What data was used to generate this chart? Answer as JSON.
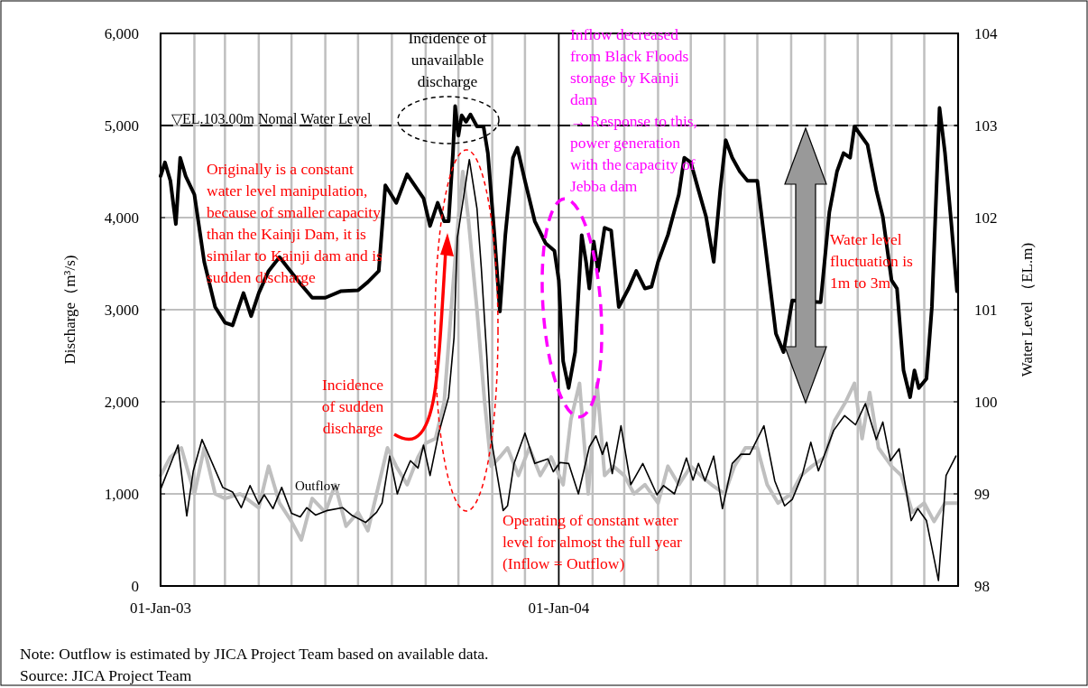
{
  "chart_data": {
    "type": "line",
    "xlabel": null,
    "ylabel": "Discharge（m³/s)",
    "y2label": "Water Level （EL.m)",
    "xlim": [
      "2003-01-01",
      "2005-01-01"
    ],
    "xticks": [
      {
        "value": "2003-01-01",
        "label": "01-Jan-03"
      },
      {
        "value": "2003-02-01",
        "label": null
      },
      {
        "value": "2003-03-01",
        "label": null
      },
      {
        "value": "2003-04-01",
        "label": null
      },
      {
        "value": "2003-05-01",
        "label": null
      },
      {
        "value": "2003-06-01",
        "label": null
      },
      {
        "value": "2003-07-01",
        "label": null
      },
      {
        "value": "2003-08-01",
        "label": null
      },
      {
        "value": "2003-09-01",
        "label": null
      },
      {
        "value": "2003-10-01",
        "label": null
      },
      {
        "value": "2003-11-01",
        "label": null
      },
      {
        "value": "2003-12-01",
        "label": null
      },
      {
        "value": "2004-01-01",
        "label": "01-Jan-04"
      },
      {
        "value": "2004-02-01",
        "label": null
      },
      {
        "value": "2004-03-01",
        "label": null
      },
      {
        "value": "2004-04-01",
        "label": null
      },
      {
        "value": "2004-05-01",
        "label": null
      },
      {
        "value": "2004-06-01",
        "label": null
      },
      {
        "value": "2004-07-01",
        "label": null
      },
      {
        "value": "2004-08-01",
        "label": null
      },
      {
        "value": "2004-09-01",
        "label": null
      },
      {
        "value": "2004-10-01",
        "label": null
      },
      {
        "value": "2004-11-01",
        "label": null
      },
      {
        "value": "2004-12-01",
        "label": null
      },
      {
        "value": "2005-01-01",
        "label": null
      }
    ],
    "ylim": [
      0,
      6000
    ],
    "yticks": [
      {
        "value": 0,
        "label": "0"
      },
      {
        "value": 1000,
        "label": "1,000"
      },
      {
        "value": 2000,
        "label": "2,000"
      },
      {
        "value": 3000,
        "label": "3,000"
      },
      {
        "value": 4000,
        "label": "4,000"
      },
      {
        "value": 5000,
        "label": "5,000"
      },
      {
        "value": 6000,
        "label": "6,000"
      }
    ],
    "y2lim": [
      98,
      104
    ],
    "y2ticks": [
      98,
      99,
      100,
      101,
      102,
      103,
      104
    ],
    "grid": true,
    "series": [
      {
        "color": "#bfbfbf",
        "x": [
          "2003-01-01",
          "2003-01-10",
          "2003-01-20",
          "2003-02-01",
          "2003-02-10",
          "2003-02-20",
          "2003-03-01",
          "2003-03-15",
          "2003-04-01",
          "2003-04-10",
          "2003-04-20",
          "2003-05-01",
          "2003-05-10",
          "2003-05-20",
          "2003-06-01",
          "2003-06-10",
          "2003-06-20",
          "2003-07-01",
          "2003-07-10",
          "2003-07-20",
          "2003-07-28",
          "2003-08-05",
          "2003-08-15",
          "2003-08-25",
          "2003-09-01",
          "2003-09-10",
          "2003-09-18",
          "2003-09-25",
          "2003-10-01",
          "2003-10-05",
          "2003-10-10",
          "2003-10-18",
          "2003-10-25",
          "2003-10-31",
          "2003-11-08",
          "2003-11-15",
          "2003-11-25",
          "2003-12-05",
          "2003-12-15",
          "2003-12-25",
          "2004-01-05",
          "2004-01-12",
          "2004-01-20",
          "2004-01-28",
          "2004-02-05",
          "2004-02-12",
          "2004-02-20",
          "2004-03-01",
          "2004-03-10",
          "2004-03-20",
          "2004-04-01",
          "2004-04-10",
          "2004-04-20",
          "2004-05-01",
          "2004-05-10",
          "2004-05-20",
          "2004-06-01",
          "2004-06-10",
          "2004-06-20",
          "2004-07-01",
          "2004-07-10",
          "2004-07-20",
          "2004-08-01",
          "2004-08-10",
          "2004-08-20",
          "2004-09-01",
          "2004-09-10",
          "2004-09-20",
          "2004-09-28",
          "2004-10-05",
          "2004-10-12",
          "2004-10-20",
          "2004-11-01",
          "2004-11-10",
          "2004-11-20",
          "2004-12-01",
          "2004-12-10",
          "2004-12-20",
          "2004-12-31"
        ],
        "values": [
          1200,
          1400,
          1500,
          1000,
          1500,
          1000,
          950,
          1000,
          850,
          1300,
          900,
          700,
          500,
          950,
          800,
          1100,
          650,
          800,
          600,
          1100,
          1500,
          1300,
          1100,
          1400,
          1550,
          1600,
          2000,
          3100,
          4000,
          4500,
          4000,
          3000,
          2000,
          1300,
          1400,
          1500,
          1200,
          1500,
          1200,
          1400,
          1100,
          1800,
          2200,
          1000,
          2200,
          1200,
          1300,
          1200,
          1000,
          1100,
          900,
          1300,
          1100,
          1300,
          1200,
          1100,
          1000,
          1300,
          1500,
          1500,
          1100,
          900,
          1000,
          1200,
          1300,
          1400,
          1800,
          2000,
          2200,
          1600,
          2100,
          1500,
          1300,
          1200,
          800,
          900,
          700,
          900,
          900
        ]
      },
      {
        "name": "Outflow",
        "color": "#000000",
        "x": [
          "2003-01-01",
          "2003-01-05",
          "2003-01-17",
          "2003-01-25",
          "2003-01-31",
          "2003-02-08",
          "2003-02-27",
          "2003-03-08",
          "2003-03-16",
          "2003-03-24",
          "2003-04-01",
          "2003-04-06",
          "2003-04-14",
          "2003-04-22",
          "2003-05-01",
          "2003-05-09",
          "2003-05-15",
          "2003-05-23",
          "2003-06-03",
          "2003-06-17",
          "2003-06-25",
          "2003-07-08",
          "2003-07-18",
          "2003-07-23",
          "2003-07-30",
          "2003-08-06",
          "2003-08-11",
          "2003-08-18",
          "2003-08-25",
          "2003-08-30",
          "2003-09-05",
          "2003-09-13",
          "2003-09-22",
          "2003-09-27",
          "2003-09-30",
          "2003-10-11",
          "2003-10-18",
          "2003-10-22",
          "2003-10-27",
          "2003-10-31",
          "2003-11-11",
          "2003-11-15",
          "2003-11-21",
          "2003-12-01",
          "2003-12-10",
          "2003-12-22",
          "2003-12-27",
          "2004-01-02",
          "2004-01-10",
          "2004-01-19",
          "2004-01-29",
          "2004-02-04",
          "2004-02-10",
          "2004-02-14",
          "2004-02-19",
          "2004-02-27",
          "2004-03-07",
          "2004-03-18",
          "2004-03-31",
          "2004-04-06",
          "2004-04-16",
          "2004-04-27",
          "2004-05-03",
          "2004-05-08",
          "2004-05-14",
          "2004-05-22",
          "2004-05-30",
          "2004-06-08",
          "2004-06-16",
          "2004-06-24",
          "2004-07-07",
          "2004-07-17",
          "2004-07-26",
          "2004-08-02",
          "2004-08-11",
          "2004-08-19",
          "2004-08-26",
          "2004-09-09",
          "2004-09-19",
          "2004-09-29",
          "2004-10-08",
          "2004-10-18",
          "2004-10-24",
          "2004-10-31",
          "2004-11-08",
          "2004-11-19",
          "2004-11-25",
          "2004-12-03",
          "2004-12-14",
          "2004-12-21",
          "2004-12-30"
        ],
        "values": [
          1050,
          1170,
          1530,
          760,
          1250,
          1590,
          1070,
          1020,
          850,
          1090,
          890,
          990,
          840,
          1070,
          790,
          750,
          850,
          770,
          820,
          850,
          770,
          690,
          800,
          900,
          1410,
          1000,
          1170,
          1360,
          1280,
          1530,
          1200,
          1660,
          2050,
          2700,
          3780,
          4630,
          4100,
          3450,
          2500,
          1600,
          820,
          870,
          1330,
          1660,
          1330,
          1380,
          1240,
          1340,
          1330,
          1000,
          1510,
          1630,
          1430,
          1560,
          1220,
          1740,
          1100,
          1330,
          990,
          1090,
          1000,
          1390,
          1150,
          1330,
          1140,
          1410,
          840,
          1330,
          1430,
          1430,
          1740,
          1140,
          870,
          940,
          1200,
          1560,
          1250,
          1690,
          1850,
          1750,
          1980,
          1590,
          1780,
          1360,
          1490,
          710,
          840,
          710,
          60,
          1200,
          1410
        ]
      },
      {
        "color": "#000000",
        "axis": "y2",
        "x": [
          "2003-01-01",
          "2003-01-05",
          "2003-01-10",
          "2003-01-15",
          "2003-01-19",
          "2003-01-24",
          "2003-02-01",
          "2003-02-10",
          "2003-02-20",
          "2003-03-01",
          "2003-03-08",
          "2003-03-18",
          "2003-03-25",
          "2003-04-01",
          "2003-04-10",
          "2003-04-20",
          "2003-04-30",
          "2003-05-10",
          "2003-05-20",
          "2003-06-01",
          "2003-06-15",
          "2003-07-01",
          "2003-07-10",
          "2003-07-20",
          "2003-07-26",
          "2003-08-05",
          "2003-08-15",
          "2003-08-30",
          "2003-09-05",
          "2003-09-12",
          "2003-09-18",
          "2003-09-22",
          "2003-09-26",
          "2003-09-28",
          "2003-10-01",
          "2003-10-04",
          "2003-10-08",
          "2003-10-12",
          "2003-10-18",
          "2003-10-24",
          "2003-10-28",
          "2003-11-03",
          "2003-11-08",
          "2003-11-13",
          "2003-11-20",
          "2003-11-24",
          "2003-12-01",
          "2003-12-10",
          "2003-12-20",
          "2003-12-28",
          "2004-01-01",
          "2004-01-05",
          "2004-01-10",
          "2004-01-16",
          "2004-01-22",
          "2004-01-26",
          "2004-01-29",
          "2004-02-02",
          "2004-02-06",
          "2004-02-12",
          "2004-02-18",
          "2004-02-25",
          "2004-03-05",
          "2004-03-12",
          "2004-03-20",
          "2004-03-26",
          "2004-04-01",
          "2004-04-10",
          "2004-04-20",
          "2004-04-25",
          "2004-05-01",
          "2004-05-08",
          "2004-05-15",
          "2004-05-22",
          "2004-05-28",
          "2004-06-02",
          "2004-06-08",
          "2004-06-15",
          "2004-06-22",
          "2004-07-01",
          "2004-07-10",
          "2004-07-18",
          "2004-07-25",
          "2004-08-02",
          "2004-08-28",
          "2004-09-05",
          "2004-09-12",
          "2004-09-18",
          "2004-09-24",
          "2004-09-28",
          "2004-10-04",
          "2004-10-10",
          "2004-10-18",
          "2004-10-24",
          "2004-11-01",
          "2004-11-06",
          "2004-11-12",
          "2004-11-18",
          "2004-11-22",
          "2004-11-26",
          "2004-12-03",
          "2004-12-08",
          "2004-12-15",
          "2004-12-20",
          "2004-12-26",
          "2004-12-31"
        ],
        "values": [
          102.45,
          102.6,
          102.4,
          101.93,
          102.65,
          102.45,
          102.25,
          101.52,
          101.03,
          100.86,
          100.83,
          101.18,
          100.93,
          101.18,
          101.42,
          101.57,
          101.42,
          101.27,
          101.13,
          101.13,
          101.2,
          101.21,
          101.3,
          101.42,
          102.35,
          102.16,
          102.47,
          102.21,
          101.91,
          102.16,
          101.96,
          101.96,
          102.7,
          103.21,
          102.89,
          103.11,
          103.04,
          103.12,
          102.99,
          102.99,
          102.7,
          101.81,
          100.98,
          101.81,
          102.65,
          102.76,
          102.4,
          101.96,
          101.72,
          101.64,
          101.32,
          100.44,
          100.15,
          100.54,
          101.81,
          101.52,
          101.23,
          101.74,
          101.42,
          101.89,
          101.86,
          101.03,
          101.23,
          101.42,
          101.23,
          101.25,
          101.52,
          101.81,
          102.25,
          102.65,
          102.6,
          102.3,
          102.01,
          101.52,
          102.3,
          102.84,
          102.65,
          102.5,
          102.4,
          102.4,
          101.52,
          100.74,
          100.54,
          101.1,
          101.08,
          102.06,
          102.5,
          102.7,
          102.65,
          102.99,
          102.89,
          102.79,
          102.3,
          102.01,
          101.32,
          101.23,
          100.34,
          100.05,
          100.34,
          100.15,
          100.25,
          101.03,
          103.19,
          102.7,
          101.91,
          101.2
        ]
      }
    ],
    "ref_lines": [
      {
        "axis": "y2",
        "value": 103,
        "label": "▽EL.103.00m Nomal Water Level",
        "color": "#000000",
        "line_style": "dashed"
      },
      {
        "axis": "x",
        "value": "2004-01-01",
        "color": "#000000",
        "line_style": "solid"
      }
    ],
    "annotations": [
      "Incidence of\nunavailable\ndischarge",
      "Inflow decreased\nfrom Black Floods\nstorage by Kainji\ndam\n→ Response to this,\npower generation\nwith the capacity of\nJebba dam",
      "Originally is a constant\nwater level manipulation,\nbecause of smaller capacity\nthan the Kainji Dam, it is\nsimilar to Kainji dam and is\nsudden discharge",
      "Incidence\nof sudden\ndischarge",
      "Operating of constant water\nlevel for almost the full year\n(Inflow = Outflow)",
      "Water level\nfluctuation is\n1m to 3m",
      "Note: Outflow is estimated by JICA Project Team based on available data.",
      "Source: JICA Project Team"
    ]
  }
}
